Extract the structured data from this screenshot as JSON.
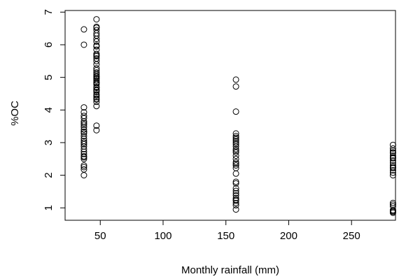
{
  "chart_data": {
    "type": "scatter",
    "xlabel": "Monthly rainfall (mm)",
    "ylabel": "%OC",
    "xlim": [
      22,
      285
    ],
    "ylim": [
      0.62,
      7.05
    ],
    "xticks": [
      50,
      100,
      150,
      200,
      250
    ],
    "yticks": [
      1,
      2,
      3,
      4,
      5,
      6,
      7
    ],
    "grid": false,
    "legend": "none",
    "series": [
      {
        "x": [
          37,
          37,
          37,
          37,
          37,
          37,
          37,
          37,
          37,
          37,
          37,
          37,
          37,
          37,
          37,
          37,
          37,
          37,
          37,
          37,
          37,
          37,
          37,
          37,
          37,
          37,
          37,
          37,
          37,
          37,
          47,
          47,
          47,
          47,
          47,
          47,
          47,
          47,
          47,
          47,
          47,
          47,
          47,
          47,
          47,
          47,
          47,
          47,
          47,
          47,
          47,
          47,
          47,
          47,
          47,
          47,
          47,
          47,
          47,
          47,
          47,
          47,
          47,
          47,
          47,
          47,
          47,
          47,
          47,
          47,
          47,
          47,
          47,
          158,
          158,
          158,
          158,
          158,
          158,
          158,
          158,
          158,
          158,
          158,
          158,
          158,
          158,
          158,
          158,
          158,
          158,
          158,
          158,
          158,
          158,
          158,
          158,
          158,
          158,
          158,
          158,
          158,
          158,
          158,
          158,
          158,
          283,
          283,
          283,
          283,
          283,
          283,
          283,
          283,
          283,
          283,
          283,
          283,
          283,
          283,
          283,
          283,
          283,
          283,
          283,
          283,
          283,
          283,
          283
        ],
        "y": [
          6.47,
          6.0,
          4.08,
          3.93,
          3.82,
          3.75,
          3.65,
          3.55,
          3.48,
          3.4,
          3.33,
          3.28,
          3.2,
          3.12,
          3.05,
          2.95,
          2.88,
          2.8,
          2.72,
          2.65,
          2.58,
          2.5,
          2.3,
          2.25,
          2.18,
          2.0,
          3.6,
          3.0,
          2.55,
          3.33,
          6.78,
          6.55,
          6.52,
          6.35,
          6.18,
          6.1,
          5.98,
          5.85,
          5.68,
          5.65,
          5.5,
          5.4,
          5.28,
          5.15,
          5.1,
          5.05,
          4.98,
          4.9,
          4.85,
          4.78,
          4.7,
          4.62,
          4.55,
          4.48,
          4.4,
          4.32,
          4.25,
          4.12,
          3.52,
          3.38,
          5.95,
          5.72,
          5.02,
          4.95,
          4.68,
          4.6,
          4.45,
          4.35,
          5.22,
          5.58,
          6.28,
          6.45,
          4.82,
          4.93,
          4.72,
          3.95,
          3.28,
          3.2,
          3.1,
          3.05,
          3.0,
          2.95,
          2.88,
          2.8,
          2.7,
          2.6,
          2.5,
          2.4,
          2.3,
          2.22,
          1.8,
          1.75,
          1.6,
          1.52,
          1.45,
          1.38,
          1.3,
          1.22,
          1.15,
          1.08,
          0.95,
          2.35,
          2.75,
          3.15,
          2.05,
          1.25,
          2.93,
          2.82,
          2.75,
          2.68,
          2.6,
          2.52,
          2.45,
          2.38,
          2.3,
          2.22,
          2.15,
          2.08,
          2.0,
          1.15,
          1.1,
          1.05,
          0.93,
          0.88,
          0.85,
          2.7,
          2.55,
          2.25,
          0.9
        ]
      }
    ]
  }
}
